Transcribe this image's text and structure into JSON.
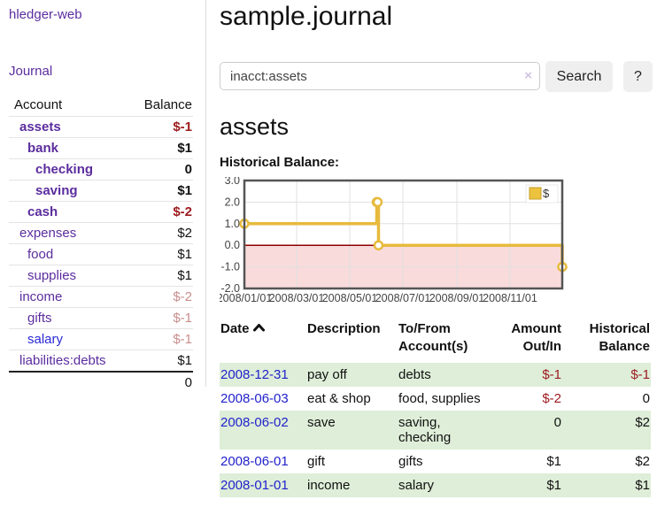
{
  "app": {
    "brand": "hledger-web",
    "nav_journal": "Journal"
  },
  "sidebar": {
    "header": {
      "account": "Account",
      "balance": "Balance"
    },
    "accounts": [
      {
        "name": "assets",
        "balance": "$-1"
      },
      {
        "name": "bank",
        "balance": "$1"
      },
      {
        "name": "checking",
        "balance": "0"
      },
      {
        "name": "saving",
        "balance": "$1"
      },
      {
        "name": "cash",
        "balance": "$-2"
      },
      {
        "name": "expenses",
        "balance": "$2"
      },
      {
        "name": "food",
        "balance": "$1"
      },
      {
        "name": "supplies",
        "balance": "$1"
      },
      {
        "name": "income",
        "balance": "$-2"
      },
      {
        "name": "gifts",
        "balance": "$-1"
      },
      {
        "name": "salary",
        "balance": "$-1"
      },
      {
        "name": "liabilities:debts",
        "balance": "$1"
      }
    ],
    "total": "0"
  },
  "main": {
    "title": "sample.journal",
    "search": {
      "value": "inacct:assets",
      "clear_icon": "×",
      "button": "Search",
      "help": "?"
    },
    "account_heading": "assets",
    "chart_title": "Historical Balance:"
  },
  "chart_data": {
    "type": "line",
    "title": "Historical Balance",
    "series_name": "$",
    "step": "after",
    "points": [
      {
        "date": "2008-01-01",
        "day": 0,
        "value": 1
      },
      {
        "date": "2008-06-01",
        "day": 152,
        "value": 2
      },
      {
        "date": "2008-06-02",
        "day": 153,
        "value": 2
      },
      {
        "date": "2008-06-03",
        "day": 154,
        "value": 0
      },
      {
        "date": "2008-12-31",
        "day": 365,
        "value": -1
      }
    ],
    "ylim": [
      -2,
      3
    ],
    "y_ticks": [
      3,
      2,
      1,
      0,
      -1,
      -2
    ],
    "x_domain_days": 365,
    "x_labels": [
      {
        "label": "2008/01/01",
        "day": 0
      },
      {
        "label": "2008/03/01",
        "day": 60
      },
      {
        "label": "2008/05/01",
        "day": 121
      },
      {
        "label": "2008/07/01",
        "day": 182
      },
      {
        "label": "2008/09/01",
        "day": 244
      },
      {
        "label": "2008/11/01",
        "day": 305
      }
    ],
    "x_gridline_days": [
      60,
      121,
      182,
      244,
      305
    ],
    "grid": true,
    "legend_position": "top-right",
    "colors": {
      "line": "#e7ba3d",
      "marker_fill": "#ffffff",
      "area_below_zero": "#f9dbdb",
      "zero_line": "#8f0000",
      "grid": "#e0e0e0",
      "border": "#555555",
      "legend_swatch": "#ecc23e",
      "legend_swatch_border": "#c79d2a",
      "tick_text": "#444444"
    }
  },
  "register": {
    "headers": {
      "date": "Date",
      "description": "Description",
      "tofrom": "To/From Account(s)",
      "amount": "Amount Out/In",
      "balance": "Historical Balance"
    },
    "rows": [
      {
        "date": "2008-12-31",
        "description": "pay off",
        "tofrom": "debts",
        "amount": "$-1",
        "balance": "$-1"
      },
      {
        "date": "2008-06-03",
        "description": "eat & shop",
        "tofrom": "food, supplies",
        "amount": "$-2",
        "balance": "0"
      },
      {
        "date": "2008-06-02",
        "description": "save",
        "tofrom": "saving, checking",
        "amount": "0",
        "balance": "$2"
      },
      {
        "date": "2008-06-01",
        "description": "gift",
        "tofrom": "gifts",
        "amount": "$1",
        "balance": "$2"
      },
      {
        "date": "2008-01-01",
        "description": "income",
        "tofrom": "salary",
        "amount": "$1",
        "balance": "$1"
      }
    ]
  }
}
